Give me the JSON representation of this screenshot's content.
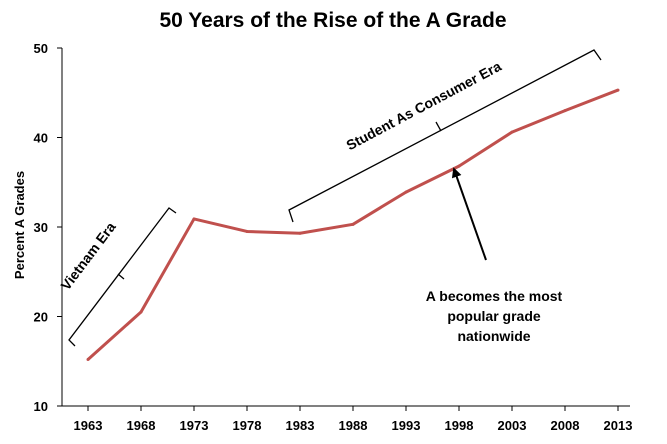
{
  "chart_data": {
    "type": "line",
    "title": "50 Years of the Rise of the A Grade",
    "xlabel": "",
    "ylabel": "Percent A Grades",
    "categories": [
      "1963",
      "1968",
      "1973",
      "1978",
      "1983",
      "1988",
      "1993",
      "1998",
      "2003",
      "2008",
      "2013"
    ],
    "series": [
      {
        "name": "Percent A Grades",
        "color": "#c0504d",
        "values": [
          15.2,
          20.5,
          30.9,
          29.5,
          29.3,
          30.3,
          33.9,
          36.8,
          40.6,
          43.0,
          45.3
        ]
      }
    ],
    "ylim": [
      10,
      50
    ],
    "yticks": [
      10,
      20,
      30,
      40,
      50
    ],
    "grid": false,
    "annotations": {
      "vietnam_era": "Vietnam Era",
      "consumer_era": "Student As Consumer Era",
      "callout_lines": [
        "A becomes the most",
        "popular grade",
        "nationwide"
      ]
    }
  }
}
